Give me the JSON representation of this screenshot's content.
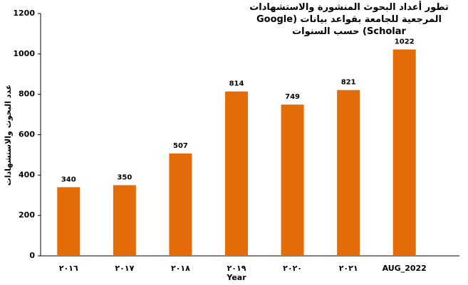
{
  "chart_data": {
    "type": "bar",
    "title": "تطور أعداد البحوث المنشورة والاستشهادات المرجعية للجامعة بقواعد بيانات (Google Scholar) حسب السنوات",
    "x_label": "Year",
    "y_label": "عدد البحوث والاستشهادات",
    "categories": [
      "٢٠١٦",
      "٢٠١٧",
      "٢٠١٨",
      "٢٠١٩",
      "٢٠٢٠",
      "٢٠٢١",
      "AUG_2022"
    ],
    "values": [
      340,
      350,
      507,
      814,
      749,
      821,
      1022
    ],
    "color": "#e36c09",
    "ylim": [
      0,
      1200
    ],
    "yticks": [
      0,
      200,
      400,
      600,
      800,
      1000,
      1200
    ],
    "grid": false
  }
}
